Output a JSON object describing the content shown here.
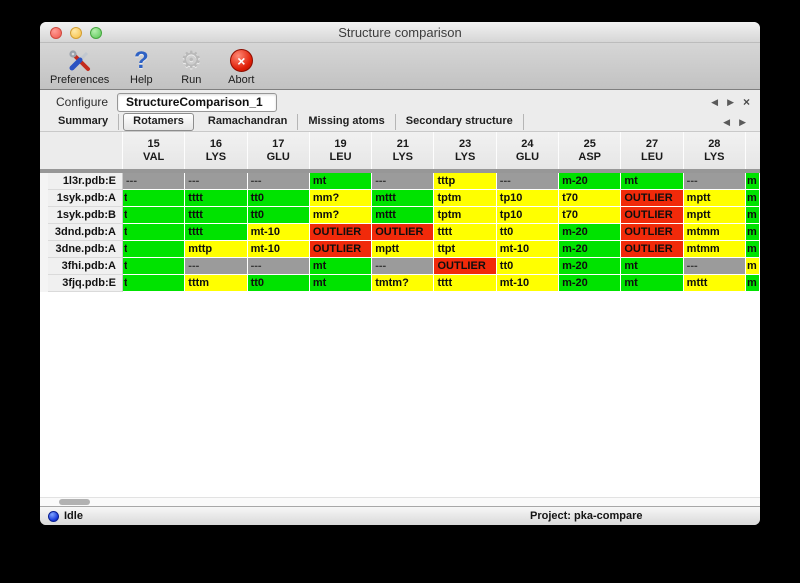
{
  "window": {
    "title": "Structure comparison"
  },
  "toolbar": {
    "items": [
      {
        "label": "Preferences",
        "icon": "preferences-tools-icon"
      },
      {
        "label": "Help",
        "icon": "help-question-icon"
      },
      {
        "label": "Run",
        "icon": "run-gear-icon"
      },
      {
        "label": "Abort",
        "icon": "abort-icon"
      }
    ]
  },
  "configure": {
    "label": "Configure",
    "value": "StructureComparison_1"
  },
  "nav_icons": {
    "back": "◀",
    "forward": "▶",
    "close": "×"
  },
  "icon_glyphs": {
    "help": "?",
    "gear": "⚙",
    "abort_x": "×"
  },
  "tabs": {
    "selected": "Rotamers",
    "items": [
      "Summary",
      "Rotamers",
      "Ramachandran",
      "Missing atoms",
      "Secondary structure"
    ]
  },
  "table": {
    "columns": [
      {
        "num": "15",
        "res": "VAL"
      },
      {
        "num": "16",
        "res": "LYS"
      },
      {
        "num": "17",
        "res": "GLU"
      },
      {
        "num": "19",
        "res": "LEU"
      },
      {
        "num": "21",
        "res": "LYS"
      },
      {
        "num": "23",
        "res": "LYS"
      },
      {
        "num": "24",
        "res": "GLU"
      },
      {
        "num": "25",
        "res": "ASP"
      },
      {
        "num": "27",
        "res": "LEU"
      },
      {
        "num": "28",
        "res": "LYS"
      }
    ],
    "rows": [
      {
        "label": "1l3r.pdb:E",
        "cells": [
          {
            "text": "---",
            "color": "gray"
          },
          {
            "text": "---",
            "color": "gray"
          },
          {
            "text": "---",
            "color": "gray"
          },
          {
            "text": "mt",
            "color": "green"
          },
          {
            "text": "---",
            "color": "gray"
          },
          {
            "text": "tttp",
            "color": "yellow"
          },
          {
            "text": "---",
            "color": "gray"
          },
          {
            "text": "m-20",
            "color": "green"
          },
          {
            "text": "mt",
            "color": "green"
          },
          {
            "text": "---",
            "color": "gray"
          }
        ],
        "partial": {
          "text": "m",
          "color": "green"
        }
      },
      {
        "label": "1syk.pdb:A",
        "cells": [
          {
            "text": "t",
            "color": "green",
            "clipped": true
          },
          {
            "text": "tttt",
            "color": "green"
          },
          {
            "text": "tt0",
            "color": "green"
          },
          {
            "text": "mm?",
            "color": "yellow"
          },
          {
            "text": "mttt",
            "color": "green"
          },
          {
            "text": "tptm",
            "color": "yellow"
          },
          {
            "text": "tp10",
            "color": "yellow"
          },
          {
            "text": "t70",
            "color": "yellow"
          },
          {
            "text": "OUTLIER",
            "color": "red"
          },
          {
            "text": "mptt",
            "color": "yellow"
          }
        ],
        "partial": {
          "text": "m",
          "color": "green"
        }
      },
      {
        "label": "1syk.pdb:B",
        "cells": [
          {
            "text": "t",
            "color": "green",
            "clipped": true
          },
          {
            "text": "tttt",
            "color": "green"
          },
          {
            "text": "tt0",
            "color": "green"
          },
          {
            "text": "mm?",
            "color": "yellow"
          },
          {
            "text": "mttt",
            "color": "green"
          },
          {
            "text": "tptm",
            "color": "yellow"
          },
          {
            "text": "tp10",
            "color": "yellow"
          },
          {
            "text": "t70",
            "color": "yellow"
          },
          {
            "text": "OUTLIER",
            "color": "red"
          },
          {
            "text": "mptt",
            "color": "yellow"
          }
        ],
        "partial": {
          "text": "m",
          "color": "green"
        }
      },
      {
        "label": "3dnd.pdb:A",
        "cells": [
          {
            "text": "t",
            "color": "green",
            "clipped": true
          },
          {
            "text": "tttt",
            "color": "green"
          },
          {
            "text": "mt-10",
            "color": "yellow"
          },
          {
            "text": "OUTLIER",
            "color": "red"
          },
          {
            "text": "OUTLIER",
            "color": "red"
          },
          {
            "text": "tttt",
            "color": "yellow"
          },
          {
            "text": "tt0",
            "color": "yellow"
          },
          {
            "text": "m-20",
            "color": "green"
          },
          {
            "text": "OUTLIER",
            "color": "red"
          },
          {
            "text": "mtmm",
            "color": "yellow"
          }
        ],
        "partial": {
          "text": "m",
          "color": "green"
        }
      },
      {
        "label": "3dne.pdb:A",
        "cells": [
          {
            "text": "t",
            "color": "green",
            "clipped": true
          },
          {
            "text": "mttp",
            "color": "yellow"
          },
          {
            "text": "mt-10",
            "color": "yellow"
          },
          {
            "text": "OUTLIER",
            "color": "red"
          },
          {
            "text": "mptt",
            "color": "yellow"
          },
          {
            "text": "ttpt",
            "color": "yellow"
          },
          {
            "text": "mt-10",
            "color": "yellow"
          },
          {
            "text": "m-20",
            "color": "green"
          },
          {
            "text": "OUTLIER",
            "color": "red"
          },
          {
            "text": "mtmm",
            "color": "yellow"
          }
        ],
        "partial": {
          "text": "m",
          "color": "green"
        }
      },
      {
        "label": "3fhi.pdb:A",
        "cells": [
          {
            "text": "t",
            "color": "green",
            "clipped": true
          },
          {
            "text": "---",
            "color": "gray"
          },
          {
            "text": "---",
            "color": "gray"
          },
          {
            "text": "mt",
            "color": "green"
          },
          {
            "text": "---",
            "color": "gray"
          },
          {
            "text": "OUTLIER",
            "color": "red"
          },
          {
            "text": "tt0",
            "color": "yellow"
          },
          {
            "text": "m-20",
            "color": "green"
          },
          {
            "text": "mt",
            "color": "green"
          },
          {
            "text": "---",
            "color": "gray"
          }
        ],
        "partial": {
          "text": "m",
          "color": "yellow"
        }
      },
      {
        "label": "3fjq.pdb:E",
        "cells": [
          {
            "text": "t",
            "color": "green",
            "clipped": true
          },
          {
            "text": "tttm",
            "color": "yellow"
          },
          {
            "text": "tt0",
            "color": "green"
          },
          {
            "text": "mt",
            "color": "green"
          },
          {
            "text": "tmtm?",
            "color": "yellow"
          },
          {
            "text": "tttt",
            "color": "yellow"
          },
          {
            "text": "mt-10",
            "color": "yellow"
          },
          {
            "text": "m-20",
            "color": "green"
          },
          {
            "text": "mt",
            "color": "green"
          },
          {
            "text": "mttt",
            "color": "yellow"
          }
        ],
        "partial": {
          "text": "m",
          "color": "green"
        }
      }
    ]
  },
  "statusbar": {
    "status": "Idle",
    "project": "Project: pka-compare"
  },
  "colors": {
    "green": "#00e300",
    "yellow": "#ffff00",
    "red": "#f12a0a",
    "gray": "#9b9b9b",
    "gray_text": "#3a3a3a"
  }
}
